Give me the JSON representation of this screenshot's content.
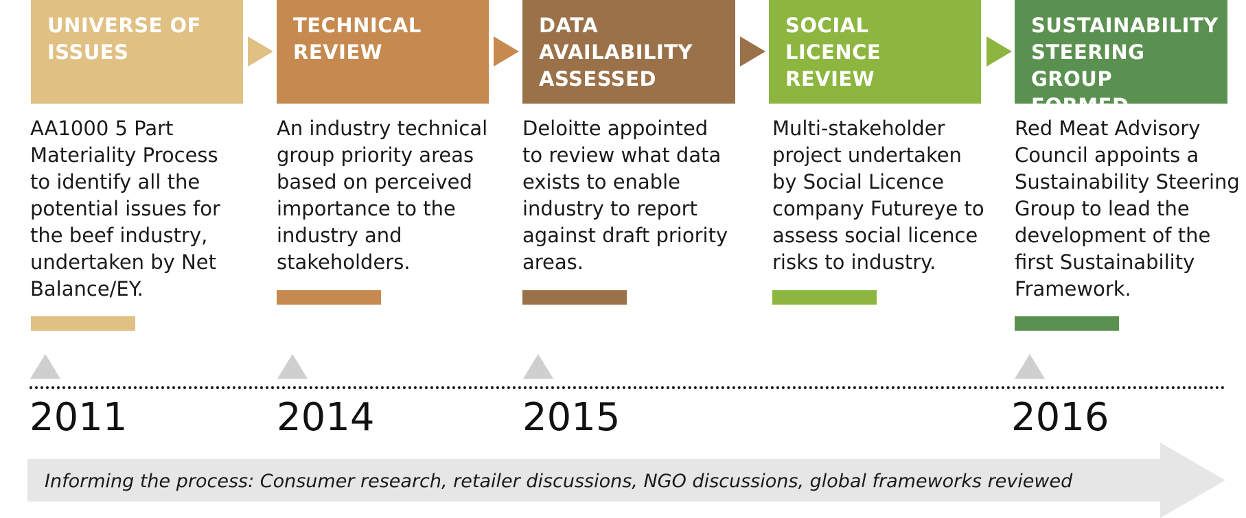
{
  "stages": [
    {
      "title": "UNIVERSE OF ISSUES",
      "description": "AA1000 5 Part Materiality Process to identify all the potential issues for the beef industry, undertaken by Net Balance/EY.",
      "color": "#e0c083"
    },
    {
      "title": "TECHNICAL REVIEW",
      "description": "An industry technical group priority areas based on perceived importance to the industry and stakeholders.",
      "color": "#c68a50"
    },
    {
      "title": "DATA AVAILABILITY ASSESSED",
      "description": "Deloitte appointed to review what data exists to enable industry to report against draft priority areas.",
      "color": "#9b7149"
    },
    {
      "title": "SOCIAL LICENCE REVIEW",
      "description": "Multi-stakeholder project undertaken by Social Licence company Futureye to assess social licence risks to industry.",
      "color": "#8cb63f"
    },
    {
      "title": "SUSTAINABILITY STEERING GROUP FORMED",
      "description": "Red Meat Advisory Council appoints a Sustainability Steering Group to lead the development of the first Sustainability Framework.",
      "color": "#5b9150"
    }
  ],
  "years": [
    "2011",
    "2014",
    "2015",
    "2016"
  ],
  "informing_text": "Informing the process: Consumer research, retailer discussions, NGO discussions, global frameworks reviewed",
  "colors": {
    "marker": "#cfcfd0",
    "banner": "#e6e6e7",
    "text": "#1a1a1a"
  }
}
